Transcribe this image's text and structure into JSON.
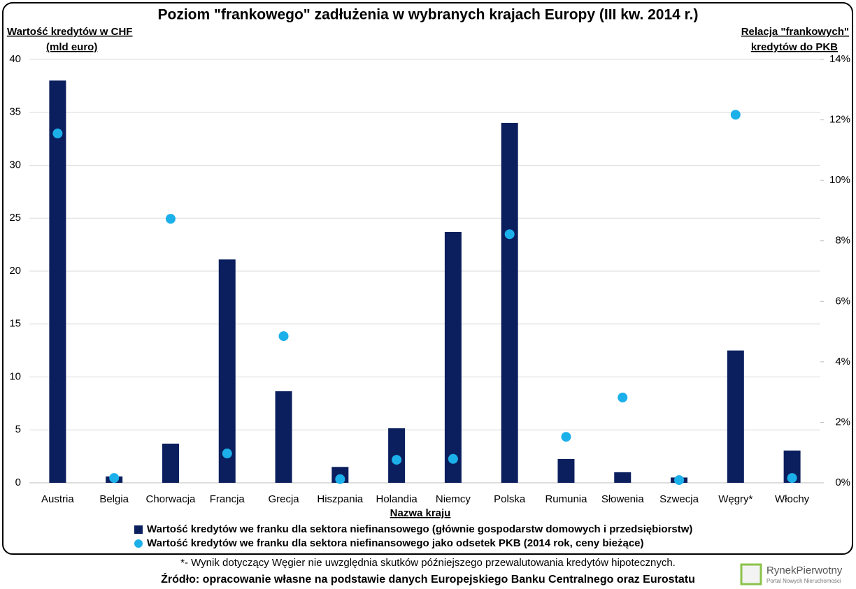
{
  "chart_data": {
    "type": "bar",
    "title": "Poziom \"frankowego\" zadłużenia w wybranych krajach Europy (III kw. 2014 r.)",
    "ylabel": [
      "Wartość kredytów w CHF",
      "(mld euro)"
    ],
    "y2label": [
      "Relacja \"frankowych\"",
      "kredytów do PKB"
    ],
    "xlabel": "Nazwa kraju",
    "categories": [
      "Austria",
      "Belgia",
      "Chorwacja",
      "Francja",
      "Grecja",
      "Hiszpania",
      "Holandia",
      "Niemcy",
      "Polska",
      "Rumunia",
      "Słowenia",
      "Szwecja",
      "Węgry*",
      "Włochy"
    ],
    "series": [
      {
        "name": "Wartość kredytów we franku dla sektora niefinansowego (głównie gospodarstw domowych i przedsiębiorstw)",
        "type": "bar",
        "color": "#0b1f5e",
        "values": [
          38.0,
          0.6,
          3.7,
          21.1,
          8.65,
          1.5,
          5.15,
          23.7,
          34.0,
          2.25,
          1.0,
          0.5,
          12.5,
          3.05
        ]
      },
      {
        "name": "Wartość kredytów we franku dla sektora niefinansowego jako odsetek PKB (2014 rok, ceny bieżące)",
        "type": "scatter",
        "axis": "y2",
        "color": "#1cb0ea",
        "values": [
          11.55,
          0.16,
          8.73,
          0.97,
          4.85,
          0.12,
          0.76,
          0.79,
          8.22,
          1.52,
          2.82,
          0.09,
          12.17,
          0.16
        ]
      }
    ],
    "ylim": [
      0,
      40
    ],
    "yticks": [
      0,
      5,
      10,
      15,
      20,
      25,
      30,
      35,
      40
    ],
    "y2lim": [
      0,
      14
    ],
    "y2ticks": [
      {
        "value": 0,
        "label": "0%"
      },
      {
        "value": 2,
        "label": "2%"
      },
      {
        "value": 4,
        "label": "4%"
      },
      {
        "value": 6,
        "label": "6%"
      },
      {
        "value": 8,
        "label": "8%"
      },
      {
        "value": 10,
        "label": "10%"
      },
      {
        "value": 12,
        "label": "12%"
      },
      {
        "value": 14,
        "label": "14%"
      }
    ],
    "grid": true,
    "footnote": "*- Wynik dotyczący Węgier nie uwzględnia skutków późniejszego przewalutowania kredytów hipotecznych.",
    "source": "Źródło: opracowanie własne na podstawie danych Europejskiego Banku Centralnego oraz Eurostatu",
    "logo_name": "RynekPierwotny",
    "logo_tagline": "Portal Nowych Nieruchomości"
  }
}
